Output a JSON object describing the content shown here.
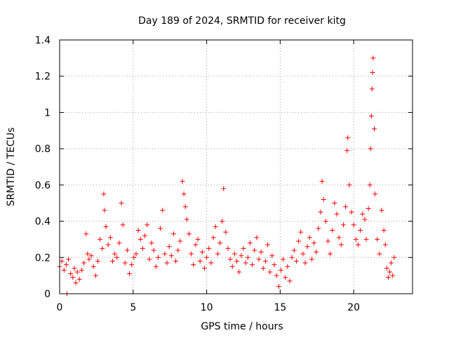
{
  "chart_data": {
    "type": "scatter",
    "title": "Day 189 of 2024, SRMTID for receiver kitg",
    "xlabel": "GPS time / hours",
    "ylabel": "SRMTID / TECUs",
    "xlim": [
      0,
      24
    ],
    "ylim": [
      0,
      1.4
    ],
    "xticks": [
      0,
      5,
      10,
      15,
      20
    ],
    "xtick_labels": [
      "0",
      "5",
      "10",
      "15",
      "20"
    ],
    "yticks": [
      0,
      0.2,
      0.4,
      0.6,
      0.8,
      1,
      1.2,
      1.4
    ],
    "ytick_labels": [
      "0",
      "0.2",
      "0.4",
      "0.6",
      "0.8",
      "1",
      "1.2",
      "1.4"
    ],
    "grid": true,
    "marker": "+",
    "series": [
      {
        "name": "SRMTID",
        "color": "#ff0000",
        "points": [
          [
            0.0,
            0.15
          ],
          [
            0.15,
            0.18
          ],
          [
            0.3,
            0.13
          ],
          [
            0.45,
            0.16
          ],
          [
            0.5,
            0.0
          ],
          [
            0.6,
            0.19
          ],
          [
            0.75,
            0.11
          ],
          [
            0.9,
            0.09
          ],
          [
            1.0,
            0.14
          ],
          [
            1.1,
            0.06
          ],
          [
            1.2,
            0.12
          ],
          [
            1.35,
            0.08
          ],
          [
            1.5,
            0.13
          ],
          [
            1.65,
            0.17
          ],
          [
            1.8,
            0.33
          ],
          [
            1.9,
            0.22
          ],
          [
            2.0,
            0.19
          ],
          [
            2.15,
            0.21
          ],
          [
            2.3,
            0.15
          ],
          [
            2.45,
            0.1
          ],
          [
            2.6,
            0.18
          ],
          [
            2.75,
            0.3
          ],
          [
            2.9,
            0.25
          ],
          [
            3.0,
            0.55
          ],
          [
            3.05,
            0.46
          ],
          [
            3.15,
            0.37
          ],
          [
            3.3,
            0.27
          ],
          [
            3.45,
            0.31
          ],
          [
            3.6,
            0.18
          ],
          [
            3.75,
            0.22
          ],
          [
            3.9,
            0.2
          ],
          [
            4.05,
            0.28
          ],
          [
            4.2,
            0.5
          ],
          [
            4.3,
            0.38
          ],
          [
            4.45,
            0.17
          ],
          [
            4.6,
            0.24
          ],
          [
            4.75,
            0.11
          ],
          [
            4.9,
            0.16
          ],
          [
            5.05,
            0.2
          ],
          [
            5.2,
            0.22
          ],
          [
            5.35,
            0.35
          ],
          [
            5.5,
            0.3
          ],
          [
            5.65,
            0.25
          ],
          [
            5.8,
            0.32
          ],
          [
            5.95,
            0.38
          ],
          [
            6.1,
            0.19
          ],
          [
            6.25,
            0.28
          ],
          [
            6.4,
            0.24
          ],
          [
            6.55,
            0.15
          ],
          [
            6.7,
            0.2
          ],
          [
            6.85,
            0.36
          ],
          [
            7.0,
            0.46
          ],
          [
            7.15,
            0.22
          ],
          [
            7.3,
            0.17
          ],
          [
            7.45,
            0.26
          ],
          [
            7.6,
            0.21
          ],
          [
            7.75,
            0.33
          ],
          [
            7.9,
            0.18
          ],
          [
            8.05,
            0.24
          ],
          [
            8.2,
            0.29
          ],
          [
            8.35,
            0.62
          ],
          [
            8.45,
            0.55
          ],
          [
            8.55,
            0.48
          ],
          [
            8.65,
            0.41
          ],
          [
            8.8,
            0.33
          ],
          [
            8.95,
            0.22
          ],
          [
            9.1,
            0.16
          ],
          [
            9.25,
            0.27
          ],
          [
            9.4,
            0.3
          ],
          [
            9.55,
            0.18
          ],
          [
            9.7,
            0.23
          ],
          [
            9.85,
            0.14
          ],
          [
            10.0,
            0.2
          ],
          [
            10.15,
            0.25
          ],
          [
            10.3,
            0.17
          ],
          [
            10.45,
            0.31
          ],
          [
            10.6,
            0.37
          ],
          [
            10.75,
            0.22
          ],
          [
            10.9,
            0.28
          ],
          [
            11.05,
            0.4
          ],
          [
            11.15,
            0.58
          ],
          [
            11.3,
            0.34
          ],
          [
            11.45,
            0.25
          ],
          [
            11.6,
            0.19
          ],
          [
            11.75,
            0.15
          ],
          [
            11.9,
            0.22
          ],
          [
            12.05,
            0.18
          ],
          [
            12.2,
            0.12
          ],
          [
            12.35,
            0.21
          ],
          [
            12.5,
            0.25
          ],
          [
            12.65,
            0.17
          ],
          [
            12.8,
            0.2
          ],
          [
            12.95,
            0.28
          ],
          [
            13.1,
            0.16
          ],
          [
            13.25,
            0.24
          ],
          [
            13.4,
            0.31
          ],
          [
            13.55,
            0.19
          ],
          [
            13.7,
            0.23
          ],
          [
            13.85,
            0.14
          ],
          [
            14.0,
            0.18
          ],
          [
            14.15,
            0.27
          ],
          [
            14.3,
            0.12
          ],
          [
            14.45,
            0.21
          ],
          [
            14.6,
            0.16
          ],
          [
            14.75,
            0.1
          ],
          [
            14.9,
            0.04
          ],
          [
            15.05,
            0.13
          ],
          [
            15.2,
            0.19
          ],
          [
            15.35,
            0.09
          ],
          [
            15.5,
            0.15
          ],
          [
            15.65,
            0.07
          ],
          [
            15.8,
            0.2
          ],
          [
            15.95,
            0.24
          ],
          [
            16.1,
            0.18
          ],
          [
            16.25,
            0.29
          ],
          [
            16.4,
            0.34
          ],
          [
            16.55,
            0.22
          ],
          [
            16.7,
            0.17
          ],
          [
            16.85,
            0.26
          ],
          [
            17.0,
            0.31
          ],
          [
            17.15,
            0.19
          ],
          [
            17.3,
            0.28
          ],
          [
            17.45,
            0.23
          ],
          [
            17.6,
            0.36
          ],
          [
            17.75,
            0.45
          ],
          [
            17.85,
            0.62
          ],
          [
            17.95,
            0.52
          ],
          [
            18.1,
            0.4
          ],
          [
            18.25,
            0.29
          ],
          [
            18.4,
            0.22
          ],
          [
            18.55,
            0.35
          ],
          [
            18.7,
            0.5
          ],
          [
            18.85,
            0.44
          ],
          [
            19.0,
            0.31
          ],
          [
            19.15,
            0.27
          ],
          [
            19.3,
            0.38
          ],
          [
            19.45,
            0.48
          ],
          [
            19.55,
            0.79
          ],
          [
            19.6,
            0.86
          ],
          [
            19.7,
            0.6
          ],
          [
            19.85,
            0.45
          ],
          [
            20.0,
            0.38
          ],
          [
            20.15,
            0.3
          ],
          [
            20.3,
            0.27
          ],
          [
            20.45,
            0.35
          ],
          [
            20.6,
            0.44
          ],
          [
            20.75,
            0.41
          ],
          [
            20.85,
            0.3
          ],
          [
            21.0,
            0.47
          ],
          [
            21.1,
            0.6
          ],
          [
            21.15,
            0.8
          ],
          [
            21.2,
            0.98
          ],
          [
            21.25,
            1.13
          ],
          [
            21.28,
            1.22
          ],
          [
            21.32,
            1.3
          ],
          [
            21.4,
            0.91
          ],
          [
            21.45,
            0.55
          ],
          [
            21.6,
            0.3
          ],
          [
            21.75,
            0.22
          ],
          [
            21.9,
            0.46
          ],
          [
            22.05,
            0.35
          ],
          [
            22.15,
            0.27
          ],
          [
            22.25,
            0.14
          ],
          [
            22.35,
            0.09
          ],
          [
            22.45,
            0.12
          ],
          [
            22.55,
            0.17
          ],
          [
            22.65,
            0.1
          ],
          [
            22.75,
            0.2
          ]
        ]
      }
    ]
  }
}
